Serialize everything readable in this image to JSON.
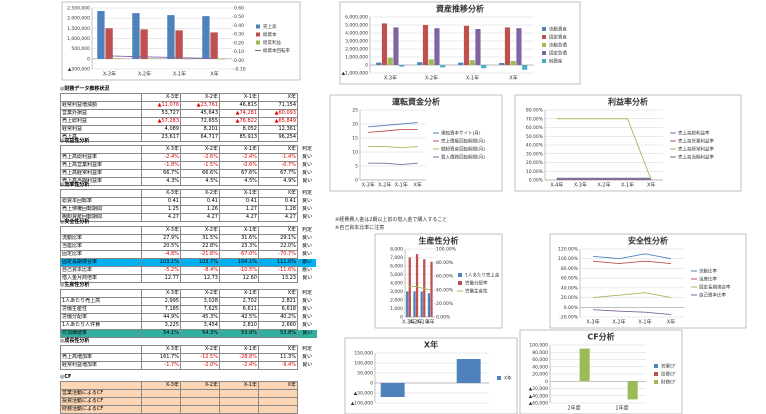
{
  "chart_data": [
    {
      "type": "bar",
      "categories": [
        "X-3年",
        "X-2年",
        "X-1年",
        "X年"
      ],
      "series": [
        {
          "name": "売上高",
          "color": "#4f81bd",
          "values": [
            2350000,
            2250000,
            2150000,
            2100000
          ]
        },
        {
          "name": "総資本",
          "color": "#c0504d",
          "values": [
            1500000,
            1450000,
            1400000,
            1300000
          ]
        },
        {
          "name": "経常利益",
          "color": "#9bbb59",
          "values": [
            30000,
            25000,
            -20000,
            -30000
          ]
        },
        {
          "name": "総資本回転率",
          "color": "#8064a2",
          "type": "line",
          "axis": "y2",
          "values": [
            0.05,
            0.04,
            0.03,
            0.02
          ]
        }
      ],
      "ylim": [
        -500000,
        2500000
      ],
      "yticks": [
        {
          "value": 2500000,
          "label": "2,500,000"
        },
        {
          "value": 2000000,
          "label": "2,000,000"
        },
        {
          "value": 1500000,
          "label": "1,500,000"
        },
        {
          "value": 1000000,
          "label": "1,000,000"
        },
        {
          "value": 500000,
          "label": "500,000"
        },
        0,
        {
          "value": -500000,
          "label": "▲500,000"
        }
      ],
      "y2lim": [
        -0.1,
        0.6
      ],
      "y2ticks": [
        {
          "value": 0.6,
          "label": "0.60"
        },
        {
          "value": 0.5,
          "label": "0.50"
        },
        {
          "value": 0.4,
          "label": "0.40"
        },
        {
          "value": 0.3,
          "label": "0.30"
        },
        {
          "value": 0.2,
          "label": "0.20"
        },
        {
          "value": 0.1,
          "label": "0.10"
        },
        {
          "value": 0,
          "label": "0.00"
        },
        {
          "value": -0.1,
          "label": "-0.10"
        }
      ],
      "grid": true
    },
    {
      "type": "bar",
      "title": "資産推移分析",
      "categories": [
        "X-3年",
        "X-2年",
        "X-1年",
        "X年"
      ],
      "series": [
        {
          "name": "流動資産",
          "color": "#4f81bd",
          "values": [
            300000,
            350000,
            300000,
            250000
          ]
        },
        {
          "name": "固定資産",
          "color": "#c0504d",
          "values": [
            5200000,
            5000000,
            4900000,
            4700000
          ]
        },
        {
          "name": "流動負債",
          "color": "#9bbb59",
          "values": [
            900000,
            700000,
            600000,
            500000
          ]
        },
        {
          "name": "固定負債",
          "color": "#8064a2",
          "values": [
            4700000,
            4600000,
            4500000,
            4600000
          ]
        },
        {
          "name": "純資産",
          "color": "#4bacc6",
          "values": [
            -200000,
            -300000,
            -400000,
            -600000
          ]
        }
      ],
      "ylim": [
        -1000000,
        6000000
      ],
      "yticks": [
        {
          "value": 6000000,
          "label": "6,000,000"
        },
        {
          "value": 5000000,
          "label": "5,000,000"
        },
        {
          "value": 4000000,
          "label": "4,000,000"
        },
        {
          "value": 3000000,
          "label": "3,000,000"
        },
        {
          "value": 2000000,
          "label": "2,000,000"
        },
        {
          "value": 1000000,
          "label": "1,000,000"
        },
        0,
        {
          "value": -1000000,
          "label": "▲1,000,000"
        }
      ],
      "grid": true
    },
    {
      "type": "line",
      "title": "運転資金分析",
      "categories": [
        "X-3年",
        "X-2年",
        "X-1年",
        "X年"
      ],
      "series": [
        {
          "name": "運転資本サイト(月)",
          "color": "#4f81bd",
          "values": [
            19,
            19.5,
            20,
            20.5
          ]
        },
        {
          "name": "売上債権回転期間(月)",
          "color": "#c0504d",
          "values": [
            17,
            17.5,
            18,
            18
          ]
        },
        {
          "name": "棚卸資産回転期間(月)",
          "color": "#9bbb59",
          "values": [
            12,
            12,
            11.5,
            12
          ]
        },
        {
          "name": "買入債務回転期間(月)",
          "color": "#8064a2",
          "values": [
            6,
            6,
            5.5,
            6
          ]
        }
      ],
      "ylim": [
        0,
        25
      ],
      "yticks": [
        0,
        5,
        10,
        15,
        20,
        25
      ],
      "grid": true
    },
    {
      "type": "line",
      "title": "利益率分析",
      "categories": [
        "X-4年",
        "X-3年",
        "X-2年",
        "X-1年",
        "X年"
      ],
      "series": [
        {
          "name": "売上高総利益率",
          "color": "#4f81bd",
          "values": [
            2,
            2,
            2,
            2,
            2
          ]
        },
        {
          "name": "売上高営業利益率",
          "color": "#c0504d",
          "values": [
            1,
            1,
            1,
            1,
            1
          ]
        },
        {
          "name": "売上高経常利益率",
          "color": "#9bbb59",
          "values": [
            70,
            70,
            70,
            70,
            0
          ]
        },
        {
          "name": "売上高当期利益率",
          "color": "#8064a2",
          "values": [
            0.5,
            0.5,
            0.5,
            0.5,
            0.5
          ]
        }
      ],
      "ylim": [
        0,
        80
      ],
      "yticks": [
        {
          "value": 0,
          "label": "0.00%"
        },
        {
          "value": 10,
          "label": "10.00%"
        },
        {
          "value": 20,
          "label": "20.00%"
        },
        {
          "value": 30,
          "label": "30.00%"
        },
        {
          "value": 40,
          "label": "40.00%"
        },
        {
          "value": 50,
          "label": "50.00%"
        },
        {
          "value": 60,
          "label": "60.00%"
        },
        {
          "value": 70,
          "label": "70.00%"
        },
        {
          "value": 80,
          "label": "80.00%"
        }
      ],
      "grid": true
    },
    {
      "type": "bar",
      "title": "生産性分析",
      "categories": [
        "X-3年",
        "X-2年",
        "X-1年",
        "X年"
      ],
      "series": [
        {
          "name": "1人あたり売上高",
          "color": "#4f81bd",
          "values": [
            3000,
            3000,
            3000,
            2800
          ]
        },
        {
          "name": "労働分配率",
          "color": "#c0504d",
          "values": [
            7000,
            7400,
            6800,
            6500
          ]
        },
        {
          "name": "労働生産性",
          "color": "#9bbb59",
          "type": "line",
          "axis": "y2",
          "values": [
            45,
            45,
            42,
            40
          ]
        }
      ],
      "ylim": [
        0,
        8000
      ],
      "yticks": [
        0,
        {
          "value": 1000,
          "label": "1,000"
        },
        {
          "value": 2000,
          "label": "2,000"
        },
        {
          "value": 3000,
          "label": "3,000"
        },
        {
          "value": 4000,
          "label": "4,000"
        },
        {
          "value": 5000,
          "label": "5,000"
        },
        {
          "value": 6000,
          "label": "6,000"
        },
        {
          "value": 7000,
          "label": "7,000"
        },
        {
          "value": 8000,
          "label": "8,000"
        }
      ],
      "y2lim": [
        0,
        100
      ],
      "y2ticks": [
        {
          "value": 0,
          "label": "0.00%"
        },
        {
          "value": 20,
          "label": "20.00%"
        },
        {
          "value": 40,
          "label": "40.00%"
        },
        {
          "value": 60,
          "label": "60.00%"
        },
        {
          "value": 80,
          "label": "80.00%"
        },
        {
          "value": 100,
          "label": "100.00%"
        }
      ],
      "grid": true
    },
    {
      "type": "line",
      "title": "安全性分析",
      "categories": [
        "X-3年",
        "X-2年",
        "X-1年",
        "X年"
      ],
      "series": [
        {
          "name": "流動比率",
          "color": "#4f81bd",
          "values": [
            105,
            100,
            110,
            100
          ]
        },
        {
          "name": "当座比率",
          "color": "#c0504d",
          "values": [
            95,
            90,
            95,
            90
          ]
        },
        {
          "name": "固定長期適合率",
          "color": "#9bbb59",
          "values": [
            20,
            25,
            30,
            20
          ]
        },
        {
          "name": "自己資本比率",
          "color": "#8064a2",
          "values": [
            -5,
            -8,
            -10,
            -15
          ]
        }
      ],
      "ylim": [
        -20,
        120
      ],
      "yticks": [
        {
          "value": -20,
          "label": "-20.00%"
        },
        {
          "value": 0,
          "label": "0.00%"
        },
        {
          "value": 20,
          "label": "20.00%"
        },
        {
          "value": 40,
          "label": "40.00%"
        },
        {
          "value": 60,
          "label": "60.00%"
        },
        {
          "value": 80,
          "label": "80.00%"
        },
        {
          "value": 100,
          "label": "100.00%"
        },
        {
          "value": 120,
          "label": "120.00%"
        }
      ],
      "grid": true
    },
    {
      "type": "bar",
      "title": "X年",
      "categories": [
        null,
        null,
        null
      ],
      "series": [
        {
          "name": "X年",
          "color": "#4f81bd",
          "values": [
            -70000,
            0,
            120000
          ]
        }
      ],
      "ylim": [
        -100000,
        150000
      ],
      "yticks": [
        {
          "value": 150000,
          "label": "150,000"
        },
        {
          "value": 100000,
          "label": "100,000"
        },
        {
          "value": 50000,
          "label": "50,000"
        },
        0,
        {
          "value": -50000,
          "label": "▲50,000"
        },
        {
          "value": -100000,
          "label": "▲100,000"
        }
      ],
      "grid": true
    },
    {
      "type": "bar",
      "title": "CF分析",
      "categories": [
        "2年度",
        "1年度"
      ],
      "series": [
        {
          "name": "営業CF",
          "color": "#4f81bd",
          "values": [
            0,
            0
          ]
        },
        {
          "name": "投資CF",
          "color": "#c0504d",
          "values": [
            0,
            0
          ]
        },
        {
          "name": "財務CF",
          "color": "#9bbb59",
          "values": [
            90000,
            -50000
          ]
        }
      ],
      "ylim": [
        -60000,
        100000
      ],
      "yticks": [
        {
          "value": 100000,
          "label": "100,000"
        },
        {
          "value": 80000,
          "label": "80,000"
        },
        {
          "value": 60000,
          "label": "60,000"
        },
        {
          "value": 40000,
          "label": "40,000"
        },
        {
          "value": 20000,
          "label": "20,000"
        },
        0,
        {
          "value": -20000,
          "label": "▲20,000"
        },
        {
          "value": -40000,
          "label": "▲40,000"
        },
        {
          "value": -60000,
          "label": "▲60,000"
        }
      ],
      "grid": true
    }
  ],
  "sheet": {
    "sections": [
      {
        "title": "◎財務データ推移状況",
        "header": [
          "",
          "X-3年",
          "X-2年",
          "X-1年",
          "X年"
        ],
        "rows": [
          [
            "経常利益増減額",
            "▲11,076",
            "▲23,761",
            "46,815",
            "71,154"
          ],
          [
            "営業外損益",
            "53,727",
            "45,643",
            "▲74,281",
            "▲60,093"
          ],
          [
            "売上総利益",
            "▲57,283",
            "72,655",
            "▲76,822",
            "▲65,849"
          ],
          [
            "経常利益",
            "4,089",
            "8,201",
            "8,052",
            "12,361"
          ],
          [
            "売上高",
            "23,617",
            "64,717",
            "85,913",
            "96,254"
          ]
        ]
      },
      {
        "title": "◎収益性分析",
        "header": [
          "",
          "X-3年",
          "X-2年",
          "X-1年",
          "X年",
          "判定"
        ],
        "rows": [
          [
            "売上高総利益率",
            "-2.4%",
            "-2.6%",
            "-2.4%",
            "-1.4%",
            "良い"
          ],
          [
            "売上高営業利益率",
            "-1.8%",
            "-1.5%",
            "-0.6%",
            "-0.7%",
            "良い"
          ],
          [
            "売上高経常利益率",
            "66.7%",
            "66.6%",
            "67.6%",
            "67.7%",
            "良い"
          ],
          [
            "売上高当期利益率",
            "4.3%",
            "4.5%",
            "4.5%",
            "4.9%",
            "良い"
          ]
        ]
      },
      {
        "title": "◎効率性分析",
        "header": [
          "",
          "X-3年",
          "X-2年",
          "X-1年",
          "X年",
          "判定"
        ],
        "rows": [
          [
            "総資本回転率",
            "0.41",
            "0.41",
            "0.41",
            "0.41",
            "良い"
          ],
          [
            "売上債権回転期間",
            "1.25",
            "1.26",
            "1.27",
            "1.28",
            "良い"
          ],
          [
            "棚卸資産回転期間",
            "4.27",
            "4.27",
            "4.27",
            "4.27",
            "良い"
          ]
        ]
      },
      {
        "title": "◎安全性分析",
        "header": [
          "",
          "X-3年",
          "X-2年",
          "X-1年",
          "X年",
          "判定"
        ],
        "highlight_row": 3,
        "highlight_color": "#00b0f0",
        "rows": [
          [
            "流動比率",
            "27.9%",
            "31.5%",
            "31.6%",
            "29.1%",
            "良い"
          ],
          [
            "当座比率",
            "20.5%",
            "22.8%",
            "23.3%",
            "22.0%",
            "良い"
          ],
          [
            "固定比率",
            "-4.8%",
            "-21.8%",
            "-67.0%",
            "-70.7%",
            "良い"
          ],
          [
            "固定長期適合率",
            "103.1%",
            "103.7%",
            "104.1%",
            "111.0%",
            "悪い"
          ],
          [
            "自己資本比率",
            "-5.2%",
            "-8.4%",
            "-10.5%",
            "-11.6%",
            "悪い"
          ],
          [
            "借入金月商倍率",
            "12.77",
            "12.73",
            "12.60",
            "13.23",
            "良い"
          ]
        ]
      },
      {
        "title": "◎生産性分析",
        "header": [
          "",
          "X-3年",
          "X-2年",
          "X-1年",
          "X年",
          "判定"
        ],
        "highlight_row": 4,
        "highlight_color": "#31b0a0",
        "rows": [
          [
            "1人あたり売上高",
            "2,995",
            "3,028",
            "2,702",
            "2,821",
            "良い"
          ],
          [
            "労働生産性",
            "7,185",
            "7,625",
            "6,611",
            "6,618",
            "良い"
          ],
          [
            "労働分配率",
            "44.9%",
            "45.3%",
            "42.5%",
            "40.2%",
            "良い"
          ],
          [
            "1人あたり人件費",
            "3,225",
            "3,454",
            "2,810",
            "2,660",
            "良い"
          ],
          [
            "付加価値率",
            "54.1%",
            "54.3%",
            "53.9%",
            "53.8%",
            "良い"
          ]
        ]
      },
      {
        "title": "◎成長性分析",
        "header": [
          "",
          "X-3年",
          "X-2年",
          "X-1年",
          "X年",
          "判定"
        ],
        "rows": [
          [
            "売上高増加率",
            "161.7%",
            "-12.5%",
            "-28.8%",
            "11.3%",
            "良い"
          ],
          [
            "経常利益増加率",
            "-1.7%",
            "-2.0%",
            "-2.4%",
            "-9.4%",
            "良い"
          ]
        ]
      },
      {
        "title": "◎CF",
        "header": [
          "",
          "X-3年",
          "X-2年",
          "X-1年",
          "X年"
        ],
        "fill": "#fcd5b4",
        "rows": [
          [
            "営業活動によるCF",
            "",
            "",
            "",
            ""
          ],
          [
            "投資活動によるCF",
            "",
            "",
            "",
            ""
          ],
          [
            "財務活動によるCF",
            "",
            "",
            "",
            ""
          ]
        ]
      }
    ],
    "notes": [
      "※経費費入金は2期以上前の借入金で購入すること",
      "※自己資本比率に注意"
    ]
  }
}
